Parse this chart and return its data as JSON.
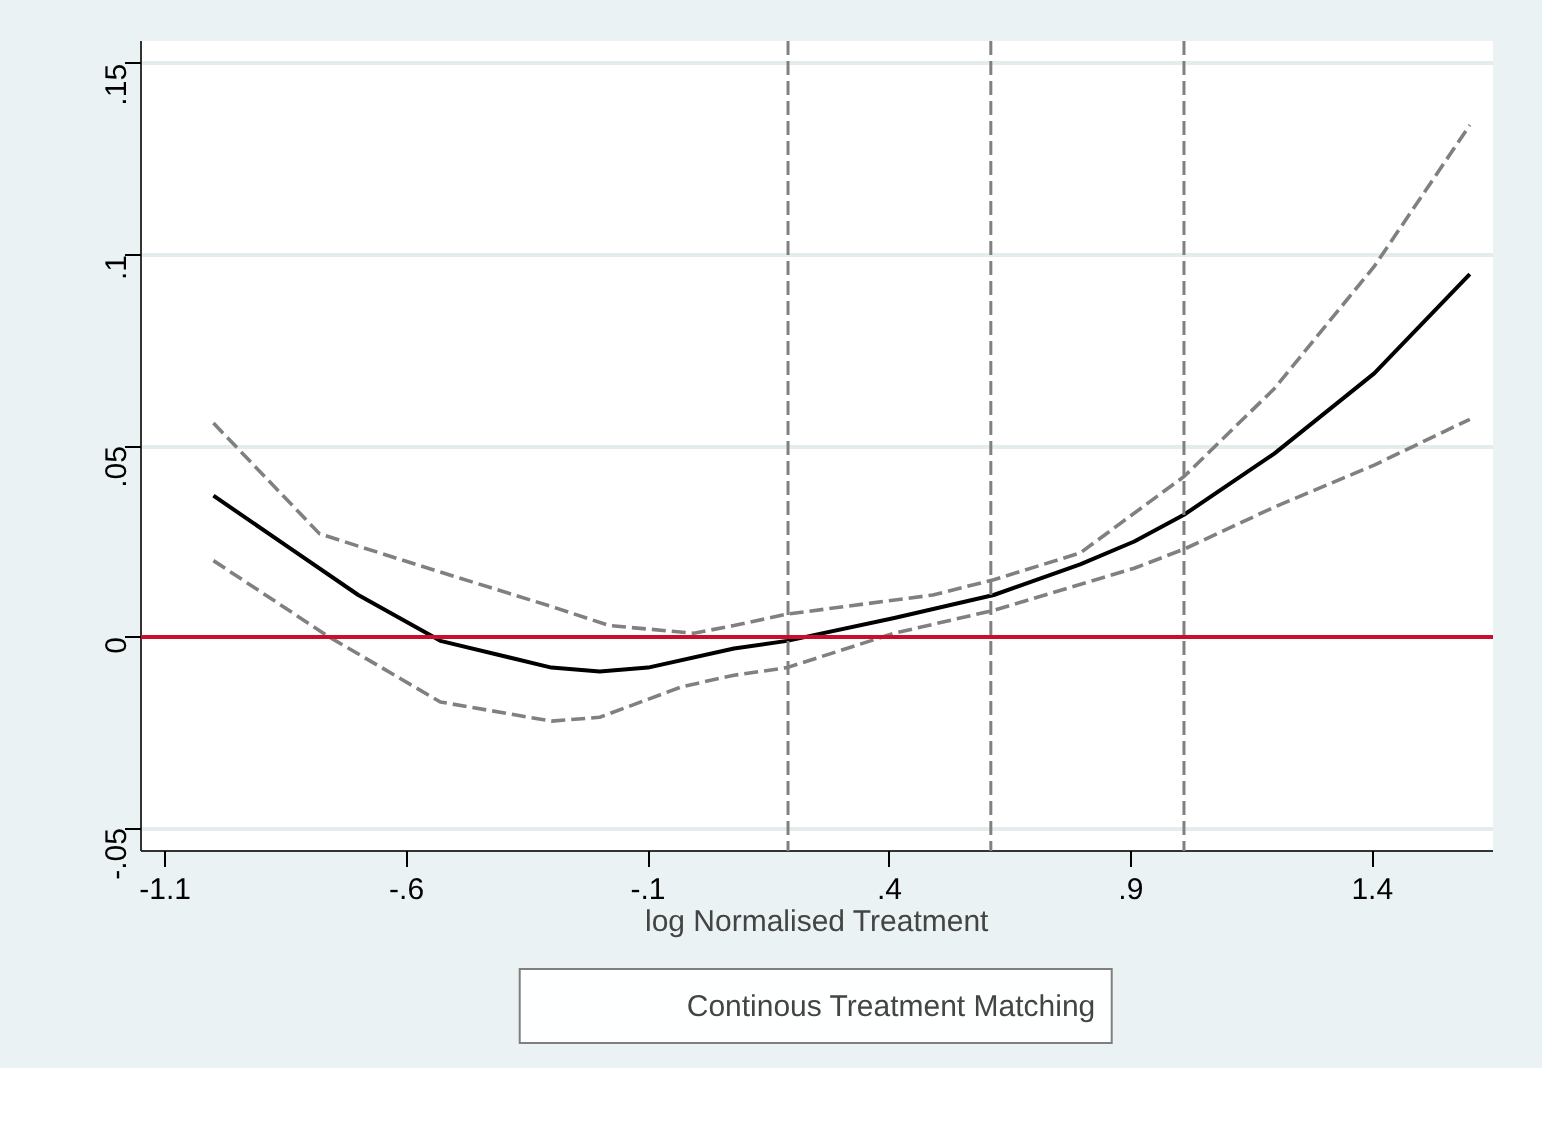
{
  "chart_data": {
    "type": "line",
    "xlabel": "log Normalised Treatment",
    "xlim": [
      -1.15,
      1.65
    ],
    "ylim": [
      -0.056,
      0.156
    ],
    "xticks": [
      {
        "value": -1.1,
        "label": "-1.1"
      },
      {
        "value": -0.6,
        "label": "-.6"
      },
      {
        "value": -0.1,
        "label": "-.1"
      },
      {
        "value": 0.4,
        "label": ".4"
      },
      {
        "value": 0.9,
        "label": ".9"
      },
      {
        "value": 1.4,
        "label": "1.4"
      }
    ],
    "yticks": [
      {
        "value": -0.05,
        "label": "-.05"
      },
      0,
      {
        "value": 0.05,
        "label": ".05"
      },
      {
        "value": 0.1,
        "label": ".1"
      },
      {
        "value": 0.15,
        "label": ".15"
      }
    ],
    "grid": "y",
    "legend": "bottom",
    "series": [
      {
        "name": "Continous Treatment Matching",
        "color": "#000000",
        "line_style": "solid",
        "x": [
          -1.0,
          -0.85,
          -0.7,
          -0.53,
          -0.3,
          -0.2,
          -0.1,
          0.078,
          0.188,
          0.41,
          0.616,
          0.795,
          0.907,
          1.01,
          1.197,
          1.404,
          1.602
        ],
        "values": [
          0.037,
          0.024,
          0.011,
          -0.001,
          -0.008,
          -0.009,
          -0.008,
          -0.003,
          -0.001,
          0.005,
          0.011,
          0.019,
          0.025,
          0.032,
          0.048,
          0.069,
          0.095
        ]
      },
      {
        "color": "#808080",
        "line_style": "dashed",
        "x": [
          -1.0,
          -0.78,
          -0.53,
          -0.3,
          -0.18,
          -0.005,
          0.078,
          0.188,
          0.49,
          0.616,
          0.795,
          1.01,
          1.197,
          1.404,
          1.602
        ],
        "values": [
          0.056,
          0.027,
          0.017,
          0.008,
          0.003,
          0.001,
          0.003,
          0.006,
          0.011,
          0.015,
          0.022,
          0.042,
          0.065,
          0.097,
          0.134
        ]
      },
      {
        "color": "#808080",
        "line_style": "dashed",
        "x": [
          -1.0,
          -0.76,
          -0.53,
          -0.3,
          -0.2,
          -0.03,
          0.078,
          0.188,
          0.41,
          0.616,
          0.907,
          1.01,
          1.197,
          1.404,
          1.602
        ],
        "values": [
          0.02,
          0.0,
          -0.017,
          -0.022,
          -0.021,
          -0.013,
          -0.01,
          -0.008,
          0.001,
          0.007,
          0.018,
          0.023,
          0.034,
          0.045,
          0.057
        ]
      }
    ],
    "ref_lines": [
      {
        "axis": "y",
        "value": 0,
        "color": "#c8102e",
        "line_style": "solid"
      },
      {
        "axis": "x",
        "value": 0.19,
        "color": "#808080",
        "line_style": "dashed"
      },
      {
        "axis": "x",
        "value": 0.61,
        "color": "#808080",
        "line_style": "dashed"
      },
      {
        "axis": "x",
        "value": 1.01,
        "color": "#808080",
        "line_style": "dashed"
      }
    ]
  }
}
